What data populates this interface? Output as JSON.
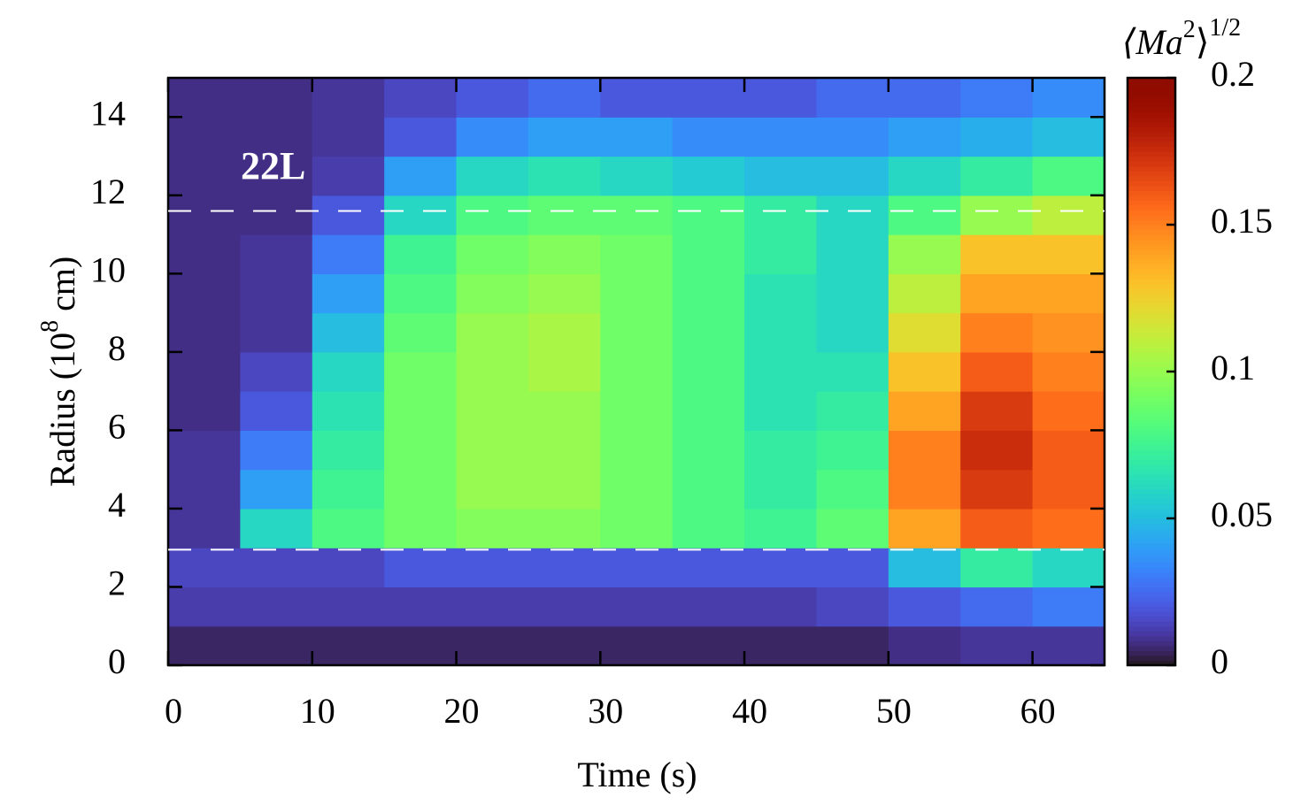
{
  "chart_data": {
    "type": "heatmap",
    "xlabel": "Time (s)",
    "ylabel": {
      "before": "Radius (10",
      "sup": "8",
      "after": " cm)"
    },
    "colorbar_label": {
      "before": "⟨Ma",
      "sup1": "2",
      "after": "⟩",
      "sup2": "1/2"
    },
    "annotation": "22L",
    "xlim": [
      0,
      65
    ],
    "xticks": [
      0,
      10,
      20,
      30,
      40,
      50,
      60
    ],
    "ylim": [
      0,
      15
    ],
    "yticks": [
      0,
      2,
      4,
      6,
      8,
      10,
      12,
      14
    ],
    "clim": [
      0,
      0.2
    ],
    "cticks": [
      0,
      0.05,
      0.1,
      0.15,
      0.2
    ],
    "colormap": "turbo",
    "hlines": [
      11.6,
      2.95
    ],
    "x_bins": [
      0,
      5,
      10,
      15,
      20,
      25,
      30,
      35,
      40,
      45,
      50,
      55,
      60,
      65
    ],
    "y_bins": [
      0,
      1,
      2,
      3,
      4,
      5,
      6,
      7,
      8,
      9,
      10,
      11,
      12,
      13,
      14,
      15
    ],
    "z": [
      [
        0.005,
        0.005,
        0.005,
        0.005,
        0.005,
        0.005,
        0.005,
        0.005,
        0.005,
        0.005,
        0.008,
        0.01,
        0.01
      ],
      [
        0.012,
        0.012,
        0.012,
        0.012,
        0.012,
        0.012,
        0.012,
        0.012,
        0.012,
        0.015,
        0.02,
        0.025,
        0.03
      ],
      [
        0.015,
        0.015,
        0.015,
        0.02,
        0.02,
        0.02,
        0.02,
        0.02,
        0.02,
        0.02,
        0.05,
        0.07,
        0.06
      ],
      [
        0.01,
        0.06,
        0.08,
        0.09,
        0.095,
        0.095,
        0.09,
        0.08,
        0.075,
        0.085,
        0.14,
        0.16,
        0.155
      ],
      [
        0.01,
        0.04,
        0.075,
        0.09,
        0.1,
        0.1,
        0.09,
        0.08,
        0.07,
        0.08,
        0.15,
        0.17,
        0.16
      ],
      [
        0.01,
        0.03,
        0.07,
        0.09,
        0.1,
        0.1,
        0.09,
        0.08,
        0.07,
        0.075,
        0.15,
        0.175,
        0.16
      ],
      [
        0.008,
        0.02,
        0.065,
        0.09,
        0.1,
        0.1,
        0.09,
        0.08,
        0.065,
        0.07,
        0.14,
        0.17,
        0.155
      ],
      [
        0.008,
        0.015,
        0.06,
        0.09,
        0.1,
        0.105,
        0.09,
        0.08,
        0.065,
        0.065,
        0.13,
        0.16,
        0.15
      ],
      [
        0.008,
        0.01,
        0.05,
        0.085,
        0.1,
        0.105,
        0.09,
        0.08,
        0.065,
        0.06,
        0.12,
        0.15,
        0.145
      ],
      [
        0.008,
        0.01,
        0.04,
        0.08,
        0.095,
        0.1,
        0.09,
        0.08,
        0.065,
        0.06,
        0.11,
        0.14,
        0.14
      ],
      [
        0.008,
        0.01,
        0.03,
        0.075,
        0.09,
        0.095,
        0.09,
        0.08,
        0.07,
        0.06,
        0.1,
        0.13,
        0.13
      ],
      [
        0.008,
        0.008,
        0.02,
        0.06,
        0.08,
        0.085,
        0.085,
        0.08,
        0.07,
        0.06,
        0.08,
        0.1,
        0.11
      ],
      [
        0.008,
        0.008,
        0.012,
        0.04,
        0.06,
        0.065,
        0.06,
        0.055,
        0.05,
        0.05,
        0.06,
        0.07,
        0.08
      ],
      [
        0.008,
        0.008,
        0.01,
        0.02,
        0.035,
        0.04,
        0.04,
        0.035,
        0.035,
        0.035,
        0.04,
        0.045,
        0.05
      ],
      [
        0.008,
        0.008,
        0.01,
        0.015,
        0.02,
        0.025,
        0.02,
        0.02,
        0.02,
        0.025,
        0.025,
        0.03,
        0.035
      ]
    ]
  }
}
